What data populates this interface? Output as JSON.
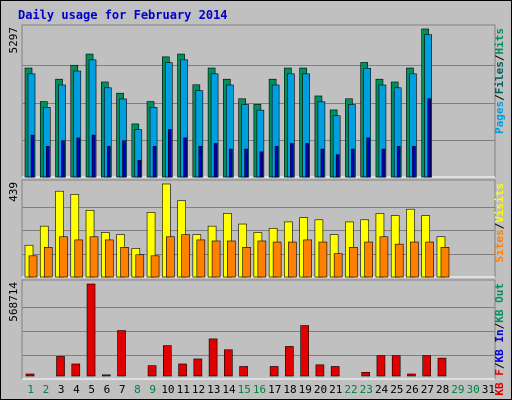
{
  "title": "Daily usage for February 2014",
  "colors": {
    "pages": "#00a0e0",
    "files": "#006060",
    "hits": "#009060",
    "visits": "#ffff00",
    "sites": "#ff8000",
    "kbytes": "#e00000",
    "weekend_day": "#008040",
    "weekday_day": "#000000",
    "panel_bg": "#c0c0c0",
    "frame": "#808080"
  },
  "chart_data": [
    {
      "type": "bar",
      "panel": "hits-files-pages",
      "y_max_label": "5297",
      "ylim": [
        0,
        5297
      ],
      "right_legend": [
        {
          "name": "Hits",
          "color": "#009060"
        },
        {
          "name": "Files",
          "color": "#006060"
        },
        {
          "name": "Pages",
          "color": "#00a0e0"
        }
      ],
      "categories": [
        "1",
        "2",
        "3",
        "4",
        "5",
        "6",
        "7",
        "8",
        "9",
        "10",
        "11",
        "12",
        "13",
        "14",
        "15",
        "16",
        "17",
        "18",
        "19",
        "20",
        "21",
        "22",
        "23",
        "24",
        "25",
        "26",
        "27",
        "28",
        "29",
        "30",
        "31"
      ],
      "series": [
        {
          "name": "Hits",
          "values": [
            3900,
            2700,
            3500,
            4000,
            4400,
            3400,
            3000,
            1900,
            2700,
            4300,
            4400,
            3300,
            3900,
            3500,
            2800,
            2600,
            3500,
            3900,
            3900,
            2900,
            2400,
            2800,
            4100,
            3500,
            3400,
            3900,
            5297,
            0,
            0,
            0,
            0
          ]
        },
        {
          "name": "Files",
          "values": [
            3800,
            2600,
            3400,
            3900,
            4300,
            3300,
            2900,
            1800,
            2600,
            4200,
            4300,
            3200,
            3800,
            3400,
            2700,
            2500,
            3400,
            3800,
            3800,
            2800,
            2300,
            2700,
            4000,
            3400,
            3300,
            3800,
            5200,
            0,
            0,
            0,
            0
          ]
        },
        {
          "name": "Pages",
          "values": [
            1500,
            1100,
            1300,
            1400,
            1500,
            1100,
            1300,
            600,
            1100,
            1700,
            1400,
            1100,
            1200,
            1000,
            1000,
            900,
            1100,
            1200,
            1200,
            1000,
            800,
            1000,
            1400,
            1000,
            1100,
            1100,
            2800,
            0,
            0,
            0,
            0
          ]
        }
      ]
    },
    {
      "type": "bar",
      "panel": "visits-sites",
      "y_max_label": "439",
      "ylim": [
        0,
        439
      ],
      "right_legend": [
        {
          "name": "Visits",
          "color": "#ffff00"
        },
        {
          "name": "Sites",
          "color": "#ff8000"
        }
      ],
      "categories": [
        "1",
        "2",
        "3",
        "4",
        "5",
        "6",
        "7",
        "8",
        "9",
        "10",
        "11",
        "12",
        "13",
        "14",
        "15",
        "16",
        "17",
        "18",
        "19",
        "20",
        "21",
        "22",
        "23",
        "24",
        "25",
        "26",
        "27",
        "28",
        "29",
        "30",
        "31"
      ],
      "series": [
        {
          "name": "Visits",
          "values": [
            150,
            240,
            405,
            390,
            315,
            210,
            200,
            135,
            305,
            439,
            360,
            200,
            240,
            300,
            250,
            210,
            230,
            260,
            280,
            270,
            200,
            260,
            270,
            300,
            290,
            320,
            290,
            190,
            0,
            0,
            0
          ]
        },
        {
          "name": "Sites",
          "values": [
            100,
            140,
            190,
            175,
            190,
            175,
            140,
            105,
            100,
            190,
            200,
            175,
            170,
            170,
            140,
            170,
            165,
            165,
            175,
            165,
            110,
            140,
            165,
            190,
            155,
            165,
            165,
            140,
            0,
            0,
            0
          ]
        }
      ]
    },
    {
      "type": "bar",
      "panel": "kbytes",
      "y_max_label": "568714",
      "ylim": [
        0,
        568714
      ],
      "right_legend": [
        {
          "name": "KB Out",
          "color": "#009060"
        },
        {
          "name": "KB In",
          "color": "#0000e0"
        },
        {
          "name": "KB F",
          "color": "#e00000"
        }
      ],
      "categories": [
        "1",
        "2",
        "3",
        "4",
        "5",
        "6",
        "7",
        "8",
        "9",
        "10",
        "11",
        "12",
        "13",
        "14",
        "15",
        "16",
        "17",
        "18",
        "19",
        "20",
        "21",
        "22",
        "23",
        "24",
        "25",
        "26",
        "27",
        "28",
        "29",
        "30",
        "31"
      ],
      "series": [
        {
          "name": "KB F",
          "values": [
            30000,
            20000,
            135000,
            90000,
            568714,
            25000,
            290000,
            10000,
            80000,
            200000,
            90000,
            120000,
            240000,
            175000,
            75000,
            20000,
            75000,
            195000,
            320000,
            85000,
            75000,
            10000,
            40000,
            140000,
            140000,
            30000,
            140000,
            125000,
            0,
            0,
            0
          ]
        }
      ]
    }
  ],
  "days": [
    {
      "label": "1",
      "weekend": true
    },
    {
      "label": "2",
      "weekend": true
    },
    {
      "label": "3",
      "weekend": false
    },
    {
      "label": "4",
      "weekend": false
    },
    {
      "label": "5",
      "weekend": false
    },
    {
      "label": "6",
      "weekend": false
    },
    {
      "label": "7",
      "weekend": false
    },
    {
      "label": "8",
      "weekend": true
    },
    {
      "label": "9",
      "weekend": true
    },
    {
      "label": "10",
      "weekend": false
    },
    {
      "label": "11",
      "weekend": false
    },
    {
      "label": "12",
      "weekend": false
    },
    {
      "label": "13",
      "weekend": false
    },
    {
      "label": "14",
      "weekend": false
    },
    {
      "label": "15",
      "weekend": true
    },
    {
      "label": "16",
      "weekend": true
    },
    {
      "label": "17",
      "weekend": false
    },
    {
      "label": "18",
      "weekend": false
    },
    {
      "label": "19",
      "weekend": false
    },
    {
      "label": "20",
      "weekend": false
    },
    {
      "label": "21",
      "weekend": false
    },
    {
      "label": "22",
      "weekend": true
    },
    {
      "label": "23",
      "weekend": true
    },
    {
      "label": "24",
      "weekend": false
    },
    {
      "label": "25",
      "weekend": false
    },
    {
      "label": "26",
      "weekend": false
    },
    {
      "label": "27",
      "weekend": false
    },
    {
      "label": "28",
      "weekend": false
    },
    {
      "label": "29",
      "weekend": true
    },
    {
      "label": "30",
      "weekend": true
    },
    {
      "label": "31",
      "weekend": false
    }
  ]
}
